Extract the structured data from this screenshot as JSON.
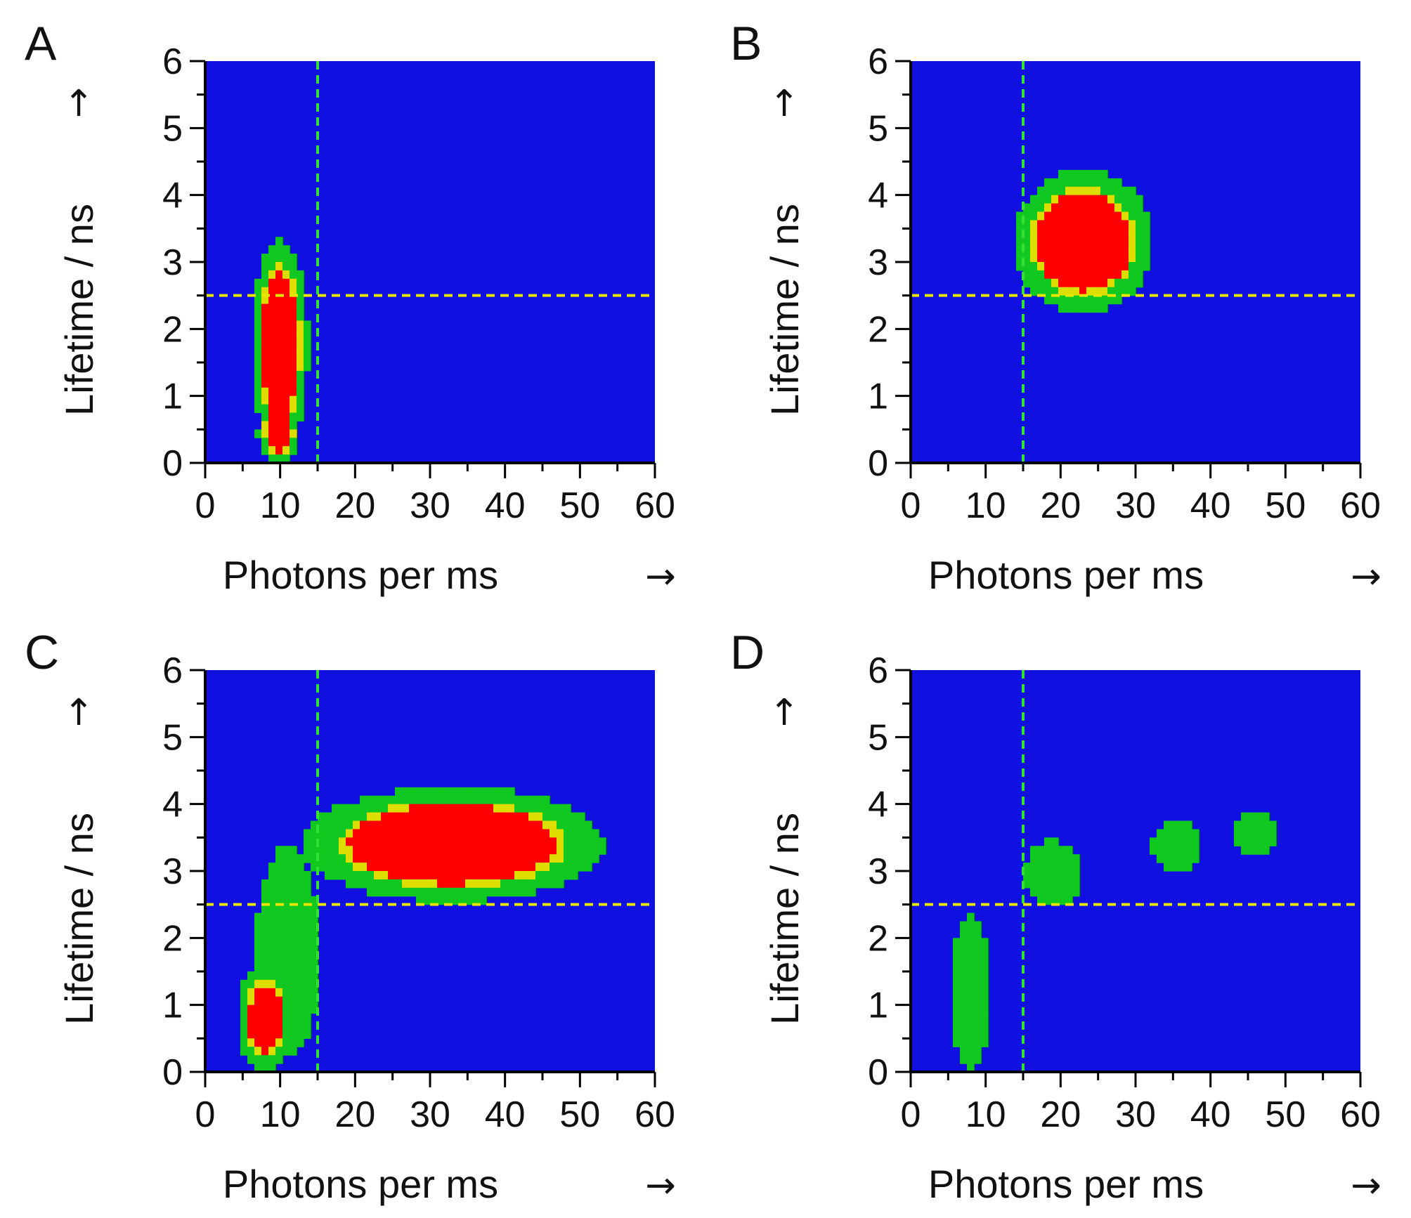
{
  "figure": {
    "colormap": [
      "#1010e0",
      "#10c820",
      "#dddd00",
      "#ff0000"
    ]
  },
  "chart_data": [
    {
      "panel": "A",
      "type": "heatmap",
      "xlabel": "Photons per ms",
      "ylabel": "Lifetime / ns",
      "x_arrow": "→",
      "y_arrow": "↑",
      "xlim": [
        0,
        60
      ],
      "ylim": [
        0,
        6
      ],
      "xticks": [
        0,
        10,
        20,
        30,
        40,
        50,
        60
      ],
      "yticks": [
        0,
        1,
        2,
        3,
        4,
        5,
        6
      ],
      "threshold_photons": 15,
      "threshold_lifetime": 2.5,
      "blobs": [
        {
          "x": 10,
          "y": 1.75,
          "sx": 2.6,
          "sy": 1.1,
          "amp": 1.0,
          "level": "high"
        },
        {
          "x": 9.8,
          "y": 0.45,
          "sx": 2.0,
          "sy": 0.35,
          "amp": 0.8,
          "level": "high"
        }
      ]
    },
    {
      "panel": "B",
      "type": "heatmap",
      "xlabel": "Photons per ms",
      "ylabel": "Lifetime / ns",
      "x_arrow": "→",
      "y_arrow": "↑",
      "xlim": [
        0,
        60
      ],
      "ylim": [
        0,
        6
      ],
      "xticks": [
        0,
        10,
        20,
        30,
        40,
        50,
        60
      ],
      "yticks": [
        0,
        1,
        2,
        3,
        4,
        5,
        6
      ],
      "threshold_photons": 15,
      "threshold_lifetime": 2.5,
      "blobs": [
        {
          "x": 23,
          "y": 3.3,
          "sx": 6.5,
          "sy": 0.75,
          "amp": 1.0,
          "level": "high"
        }
      ]
    },
    {
      "panel": "C",
      "type": "heatmap",
      "xlabel": "Photons per ms",
      "ylabel": "Lifetime / ns",
      "x_arrow": "→",
      "y_arrow": "↑",
      "xlim": [
        0,
        60
      ],
      "ylim": [
        0,
        6
      ],
      "xticks": [
        0,
        10,
        20,
        30,
        40,
        50,
        60
      ],
      "yticks": [
        0,
        1,
        2,
        3,
        4,
        5,
        6
      ],
      "threshold_photons": 15,
      "threshold_lifetime": 2.5,
      "blobs": [
        {
          "x": 33,
          "y": 3.4,
          "sx": 14,
          "sy": 0.6,
          "amp": 1.0,
          "level": "high"
        },
        {
          "x": 8,
          "y": 0.8,
          "sx": 2.6,
          "sy": 0.6,
          "amp": 0.8,
          "level": "high"
        },
        {
          "x": 11,
          "y": 1.8,
          "sx": 3.2,
          "sy": 1.2,
          "amp": 0.55,
          "level": "mid"
        }
      ]
    },
    {
      "panel": "D",
      "type": "heatmap",
      "xlabel": "Photons per ms",
      "ylabel": "Lifetime / ns",
      "x_arrow": "→",
      "y_arrow": "↑",
      "xlim": [
        0,
        60
      ],
      "ylim": [
        0,
        6
      ],
      "xticks": [
        0,
        10,
        20,
        30,
        40,
        50,
        60
      ],
      "yticks": [
        0,
        1,
        2,
        3,
        4,
        5,
        6
      ],
      "threshold_photons": 15,
      "threshold_lifetime": 2.5,
      "blobs": [
        {
          "x": 8,
          "y": 1.2,
          "sx": 1.9,
          "sy": 0.9,
          "amp": 0.55,
          "level": "mid"
        },
        {
          "x": 19,
          "y": 2.95,
          "sx": 3.0,
          "sy": 0.38,
          "amp": 0.55,
          "level": "mid"
        },
        {
          "x": 35.5,
          "y": 3.38,
          "sx": 2.4,
          "sy": 0.27,
          "amp": 0.62,
          "level": "mid"
        },
        {
          "x": 46,
          "y": 3.55,
          "sx": 2.2,
          "sy": 0.26,
          "amp": 0.55,
          "level": "mid"
        }
      ]
    }
  ]
}
